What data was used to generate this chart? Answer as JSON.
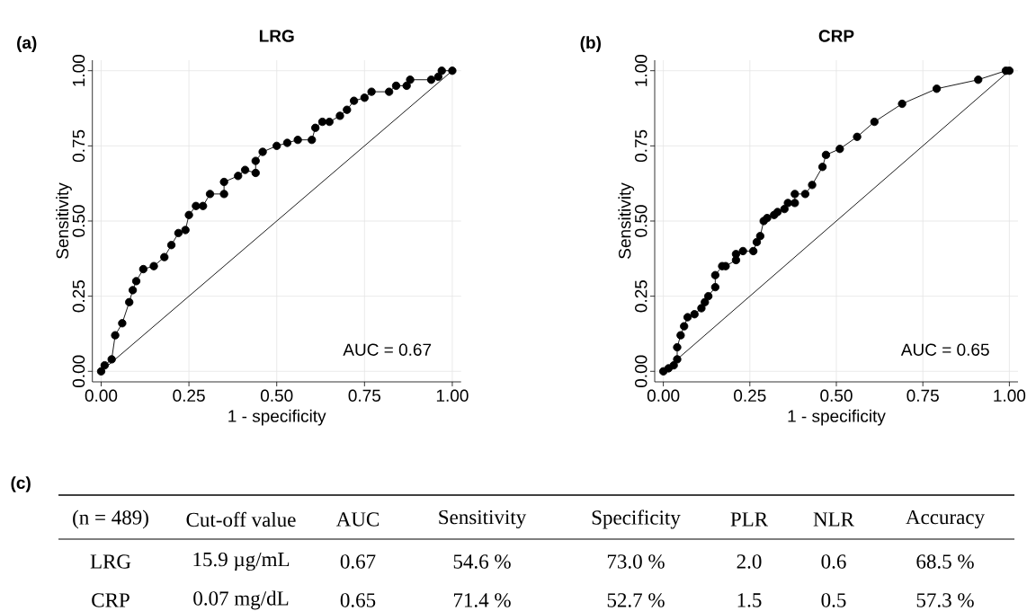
{
  "chart_data": [
    {
      "type": "line",
      "title": "LRG",
      "xlabel": "1 - specificity",
      "ylabel": "Sensitivity",
      "annotations": [
        "(a)",
        "AUC = 0.67"
      ],
      "xlim": [
        -0.025,
        1.025
      ],
      "ylim": [
        -0.035,
        1.035
      ],
      "xticks": [
        {
          "value": 0,
          "label": "0.00"
        },
        {
          "value": 0.25,
          "label": "0.25"
        },
        {
          "value": 0.5,
          "label": "0.50"
        },
        {
          "value": 0.75,
          "label": "0.75"
        },
        {
          "value": 1,
          "label": "1.00"
        }
      ],
      "yticks": [
        {
          "value": 0,
          "label": "0.00"
        },
        {
          "value": 0.25,
          "label": "0.25"
        },
        {
          "value": 0.5,
          "label": "0.50"
        },
        {
          "value": 0.75,
          "label": "0.75"
        },
        {
          "value": 1,
          "label": "1.00"
        }
      ],
      "grid": true,
      "line_style": "solid",
      "series": [
        {
          "color": "#000000",
          "marker": "circle",
          "x": [
            0,
            0.01,
            0.03,
            0.04,
            0.06,
            0.08,
            0.09,
            0.1,
            0.12,
            0.15,
            0.18,
            0.2,
            0.22,
            0.24,
            0.25,
            0.27,
            0.29,
            0.31,
            0.35,
            0.35,
            0.39,
            0.41,
            0.44,
            0.44,
            0.46,
            0.5,
            0.53,
            0.56,
            0.6,
            0.61,
            0.63,
            0.65,
            0.68,
            0.7,
            0.72,
            0.75,
            0.77,
            0.82,
            0.84,
            0.87,
            0.88,
            0.94,
            0.96,
            0.97,
            1
          ],
          "values": [
            0,
            0.02,
            0.04,
            0.12,
            0.16,
            0.23,
            0.27,
            0.3,
            0.34,
            0.35,
            0.38,
            0.42,
            0.46,
            0.47,
            0.52,
            0.55,
            0.55,
            0.59,
            0.59,
            0.63,
            0.65,
            0.67,
            0.66,
            0.7,
            0.73,
            0.75,
            0.76,
            0.77,
            0.77,
            0.81,
            0.83,
            0.83,
            0.85,
            0.87,
            0.9,
            0.91,
            0.93,
            0.93,
            0.95,
            0.95,
            0.97,
            0.97,
            0.98,
            1,
            1
          ]
        },
        {
          "color": "#000000",
          "marker": "none",
          "x": [
            0,
            1
          ],
          "values": [
            0,
            1
          ]
        }
      ]
    },
    {
      "type": "line",
      "title": "CRP",
      "xlabel": "1 - specificity",
      "ylabel": "Sensitivity",
      "annotations": [
        "(b)",
        "AUC = 0.65"
      ],
      "xlim": [
        -0.025,
        1.025
      ],
      "ylim": [
        -0.035,
        1.035
      ],
      "xticks": [
        {
          "value": 0,
          "label": "0.00"
        },
        {
          "value": 0.25,
          "label": "0.25"
        },
        {
          "value": 0.5,
          "label": "0.50"
        },
        {
          "value": 0.75,
          "label": "0.75"
        },
        {
          "value": 1,
          "label": "1.00"
        }
      ],
      "yticks": [
        {
          "value": 0,
          "label": "0.00"
        },
        {
          "value": 0.25,
          "label": "0.25"
        },
        {
          "value": 0.5,
          "label": "0.50"
        },
        {
          "value": 0.75,
          "label": "0.75"
        },
        {
          "value": 1,
          "label": "1.00"
        }
      ],
      "grid": true,
      "line_style": "solid",
      "series": [
        {
          "color": "#000000",
          "marker": "circle",
          "x": [
            0,
            0.015,
            0.03,
            0.04,
            0.04,
            0.05,
            0.06,
            0.07,
            0.09,
            0.11,
            0.12,
            0.13,
            0.15,
            0.15,
            0.17,
            0.18,
            0.21,
            0.21,
            0.23,
            0.26,
            0.27,
            0.28,
            0.29,
            0.3,
            0.32,
            0.33,
            0.35,
            0.36,
            0.38,
            0.38,
            0.41,
            0.43,
            0.46,
            0.47,
            0.51,
            0.56,
            0.61,
            0.69,
            0.79,
            0.91,
            0.99,
            1
          ],
          "values": [
            0,
            0.01,
            0.02,
            0.04,
            0.08,
            0.12,
            0.15,
            0.18,
            0.19,
            0.21,
            0.23,
            0.25,
            0.28,
            0.32,
            0.35,
            0.35,
            0.37,
            0.39,
            0.4,
            0.4,
            0.43,
            0.45,
            0.5,
            0.51,
            0.52,
            0.53,
            0.54,
            0.56,
            0.56,
            0.59,
            0.59,
            0.62,
            0.68,
            0.72,
            0.74,
            0.78,
            0.83,
            0.89,
            0.94,
            0.97,
            1,
            1
          ]
        },
        {
          "color": "#000000",
          "marker": "none",
          "x": [
            0,
            1
          ],
          "values": [
            0,
            1
          ]
        }
      ]
    },
    {
      "type": "other",
      "annotations": [
        "(c)",
        "(n = 489)",
        "Cut-off value",
        "AUC",
        "Sensitivity",
        "Specificity",
        "PLR",
        "NLR",
        "Accuracy",
        "LRG",
        "15.9 µg/mL",
        "0.67",
        "54.6 %",
        "73.0 %",
        "2.0",
        "0.6",
        "68.5 %",
        "CRP",
        "0.07 mg/dL",
        "0.65",
        "71.4 %",
        "52.7 %",
        "1.5",
        "0.5",
        "57.3 %"
      ]
    }
  ]
}
